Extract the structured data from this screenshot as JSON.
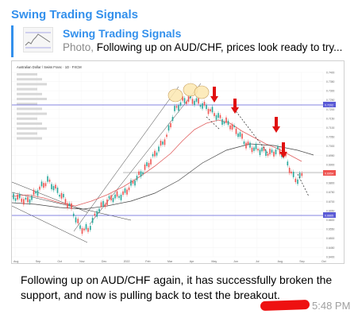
{
  "message": {
    "channel_name": "Swing Trading Signals",
    "caption": "Following up on AUD/CHF again, it has successfully broken the support, and now is pulling back to test the breakout.",
    "time": "5:48 PM"
  },
  "reply": {
    "title": "Swing Trading Signals",
    "kind": "Photo,",
    "preview": " Following up on AUD/CHF, prices look ready to try..."
  },
  "chart_image": {
    "title": "Australian Dollar / Swiss Franc · 1D · FXCM",
    "months": [
      "Aug",
      "Sep",
      "Oct",
      "Nov",
      "Dec",
      "2022",
      "Feb",
      "Mar",
      "Apr",
      "May",
      "Jun",
      "Jul",
      "Aug",
      "Sep",
      "Oct"
    ],
    "price_axis": [
      "0.7400",
      "0.7350",
      "0.7300",
      "0.7250",
      "0.7200",
      "0.7150",
      "0.7100",
      "0.7050",
      "0.7000",
      "0.6950",
      "0.6900",
      "0.6850",
      "0.6800",
      "0.6750",
      "0.6700",
      "0.6650",
      "0.6600",
      "0.6550",
      "0.6500",
      "0.6450",
      "0.6400"
    ],
    "level_upper": "0.7202",
    "level_lower": "0.6665",
    "last_price": "0.6954",
    "colors": {
      "bull": "#26a69a",
      "bear": "#ef5350",
      "level": "#5b5bd6",
      "ma_red": "#e06060",
      "ma_black": "#444444",
      "arrow": "#e01010",
      "circle_fill": "#fbe7b0",
      "circle_stroke": "#c8a060"
    }
  }
}
